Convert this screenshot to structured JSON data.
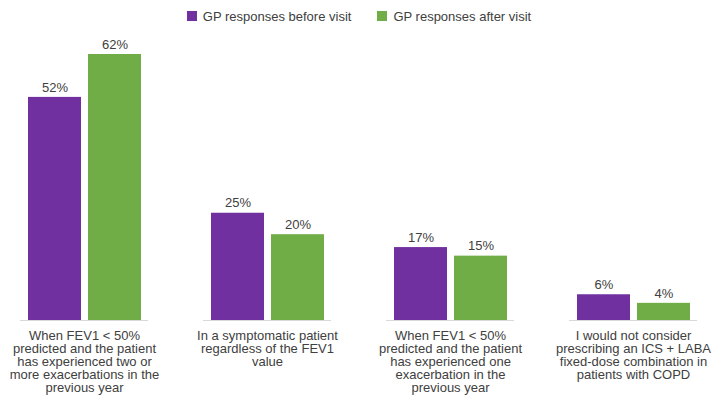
{
  "chart_data": {
    "type": "bar",
    "categories": [
      "When FEV1 < 50% predicted and the patient has experienced two or more exacerbations in the previous year",
      "In a symptomatic patient regardless of the FEV1 value",
      "When FEV1 < 50% predicted and the patient has experienced one exacerbation in the previous year",
      "I would not consider prescribing an ICS + LABA fixed-dose combination in patients with COPD"
    ],
    "series": [
      {
        "name": "GP responses before visit",
        "color": "#7030a0",
        "values": [
          52,
          25,
          17,
          6
        ],
        "value_labels": [
          "52%",
          "25%",
          "17%",
          "6%"
        ]
      },
      {
        "name": "GP responses after visit",
        "color": "#70ad47",
        "values": [
          62,
          20,
          15,
          4
        ],
        "value_labels": [
          "62%",
          "20%",
          "15%",
          "4%"
        ]
      }
    ],
    "ylim": [
      0,
      62
    ],
    "tick_labels": "x",
    "data_labels": true,
    "legend": "top"
  }
}
